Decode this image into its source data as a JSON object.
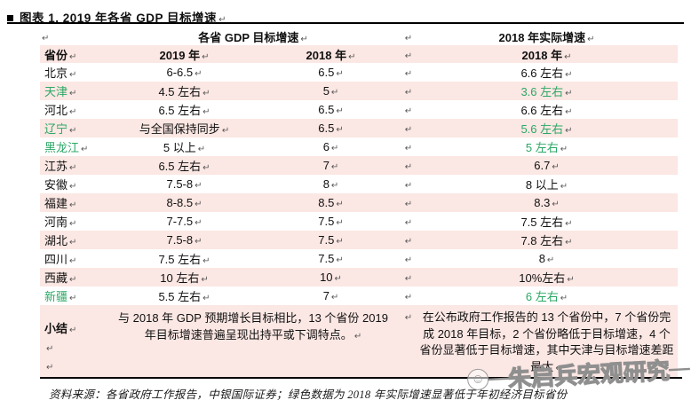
{
  "title": {
    "text": "图表 1. 2019 年各省 GDP 目标增速"
  },
  "marks": {
    "pilcrow": "↵"
  },
  "colors": {
    "row_pink": "#fbe7e3",
    "green_highlight": "#2ca866",
    "rule_black": "#000000"
  },
  "table": {
    "group_headers": {
      "left": "各省 GDP 目标增速",
      "right": "2018 年实际增速"
    },
    "headers": {
      "province": "省份",
      "target_2019": "2019 年",
      "target_2018": "2018 年",
      "actual_2018": "2018 年"
    },
    "rows": [
      {
        "province": "北京",
        "target_2019": "6-6.5",
        "target_2018": "6.5",
        "actual_2018": "6.6 左右",
        "green": false
      },
      {
        "province": "天津",
        "target_2019": "4.5 左右",
        "target_2018": "5",
        "actual_2018": "3.6 左右",
        "green": true
      },
      {
        "province": "河北",
        "target_2019": "6.5 左右",
        "target_2018": "6.5",
        "actual_2018": "6.6 左右",
        "green": false
      },
      {
        "province": "辽宁",
        "target_2019": "与全国保持同步",
        "target_2018": "6.5",
        "actual_2018": "5.6 左右",
        "green": true
      },
      {
        "province": "黑龙江",
        "target_2019": "5 以上",
        "target_2018": "6",
        "actual_2018": "5 左右",
        "green": true
      },
      {
        "province": "江苏",
        "target_2019": "6.5 左右",
        "target_2018": "7",
        "actual_2018": "6.7",
        "green": false
      },
      {
        "province": "安徽",
        "target_2019": "7.5-8",
        "target_2018": "8",
        "actual_2018": "8 以上",
        "green": false
      },
      {
        "province": "福建",
        "target_2019": "8-8.5",
        "target_2018": "8.5",
        "actual_2018": "8.3",
        "green": false
      },
      {
        "province": "河南",
        "target_2019": "7-7.5",
        "target_2018": "7.5",
        "actual_2018": "7.5 左右",
        "green": false
      },
      {
        "province": "湖北",
        "target_2019": "7.5-8",
        "target_2018": "7.5",
        "actual_2018": "7.8 左右",
        "green": false
      },
      {
        "province": "四川",
        "target_2019": "7.5 左右",
        "target_2018": "7.5",
        "actual_2018": "8",
        "green": false
      },
      {
        "province": "西藏",
        "target_2019": "10 左右",
        "target_2018": "10",
        "actual_2018": "10%左右",
        "green": false
      },
      {
        "province": "新疆",
        "target_2019": "5.5 左右",
        "target_2018": "7",
        "actual_2018": "6 左右",
        "green": true
      }
    ],
    "summary": {
      "label": "小结",
      "left_text": "与 2018 年 GDP 预期增长目标相比，13 个省份 2019 年目标增速普遍呈现出持平或下调特点。",
      "right_text": "在公布政府工作报告的 13 个省份中，7 个省份完成 2018 年目标，2 个省份略低于目标增速，4 个省份显著低于目标增速，其中天津与目标增速差距最大"
    }
  },
  "footer": {
    "source_text": "资料来源：各省政府工作报告，中银国际证券；绿色数据为 2018 年实际增速显著低于年初经济目标省份"
  },
  "watermark": {
    "logo": "☺",
    "dash": "—",
    "text": "朱启兵宏观研究"
  }
}
